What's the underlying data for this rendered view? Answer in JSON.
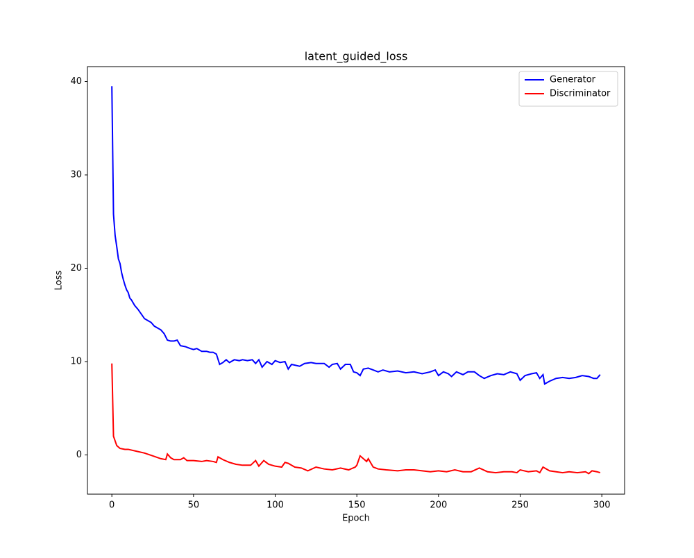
{
  "chart_data": {
    "type": "line",
    "title": "latent_guided_loss",
    "x_label": "Epoch",
    "y_label": "Loss",
    "xlim": [
      -14.95,
      313.95
    ],
    "ylim": [
      -4.2,
      41.6
    ],
    "xticks": [
      0,
      50,
      100,
      150,
      200,
      250,
      300
    ],
    "yticks": [
      0,
      10,
      20,
      30,
      40
    ],
    "legend": "upper right",
    "series": [
      {
        "name": "Generator",
        "color": "#0000ff",
        "x": [
          0,
          1,
          2,
          3,
          4,
          5,
          6,
          7,
          8,
          9,
          10,
          11,
          12,
          14,
          16,
          18,
          20,
          22,
          24,
          26,
          28,
          30,
          32,
          34,
          36,
          38,
          40,
          42,
          45,
          48,
          50,
          52,
          55,
          58,
          60,
          62,
          64,
          66,
          68,
          70,
          72,
          75,
          78,
          80,
          83,
          86,
          88,
          90,
          92,
          95,
          98,
          100,
          103,
          106,
          108,
          110,
          115,
          118,
          122,
          125,
          130,
          133,
          135,
          138,
          140,
          143,
          146,
          148,
          150,
          152,
          154,
          157,
          160,
          163,
          166,
          170,
          175,
          180,
          185,
          190,
          195,
          198,
          200,
          203,
          206,
          208,
          211,
          215,
          218,
          222,
          225,
          228,
          232,
          236,
          240,
          244,
          248,
          250,
          253,
          257,
          260,
          262,
          264,
          265,
          268,
          272,
          276,
          280,
          284,
          288,
          292,
          295,
          297,
          299
        ],
        "values": [
          39.5,
          25.8,
          23.5,
          22.3,
          21.0,
          20.5,
          19.5,
          18.8,
          18.2,
          17.7,
          17.4,
          16.8,
          16.6,
          16.0,
          15.6,
          15.1,
          14.6,
          14.4,
          14.2,
          13.8,
          13.6,
          13.4,
          13.0,
          12.3,
          12.2,
          12.2,
          12.3,
          11.7,
          11.6,
          11.4,
          11.3,
          11.4,
          11.1,
          11.1,
          11.0,
          11.0,
          10.8,
          9.7,
          9.9,
          10.2,
          9.9,
          10.2,
          10.1,
          10.2,
          10.1,
          10.2,
          9.8,
          10.2,
          9.4,
          10.0,
          9.7,
          10.1,
          9.9,
          10.0,
          9.2,
          9.7,
          9.5,
          9.8,
          9.9,
          9.8,
          9.8,
          9.4,
          9.7,
          9.8,
          9.2,
          9.7,
          9.7,
          8.9,
          8.8,
          8.5,
          9.2,
          9.3,
          9.1,
          8.9,
          9.1,
          8.9,
          9.0,
          8.8,
          8.9,
          8.7,
          8.9,
          9.1,
          8.5,
          8.9,
          8.7,
          8.4,
          8.9,
          8.6,
          8.9,
          8.9,
          8.5,
          8.2,
          8.5,
          8.7,
          8.6,
          8.9,
          8.7,
          8.0,
          8.5,
          8.7,
          8.8,
          8.2,
          8.6,
          7.6,
          7.9,
          8.2,
          8.3,
          8.2,
          8.3,
          8.5,
          8.4,
          8.2,
          8.2,
          8.6
        ]
      },
      {
        "name": "Discriminator",
        "color": "#ff0000",
        "x": [
          0,
          1,
          2,
          3,
          5,
          8,
          10,
          15,
          20,
          25,
          30,
          33,
          34,
          36,
          38,
          42,
          44,
          46,
          50,
          55,
          58,
          62,
          64,
          65,
          68,
          72,
          76,
          80,
          85,
          88,
          90,
          93,
          96,
          100,
          104,
          106,
          108,
          112,
          116,
          120,
          125,
          130,
          135,
          140,
          145,
          149,
          150,
          152,
          154,
          156,
          157,
          160,
          163,
          168,
          175,
          180,
          185,
          190,
          195,
          200,
          205,
          210,
          215,
          220,
          225,
          230,
          235,
          240,
          245,
          248,
          250,
          255,
          260,
          262,
          264,
          268,
          272,
          276,
          280,
          285,
          290,
          292,
          294,
          297,
          299
        ],
        "values": [
          9.8,
          2.0,
          1.5,
          1.0,
          0.7,
          0.6,
          0.6,
          0.4,
          0.2,
          -0.1,
          -0.4,
          -0.5,
          0.1,
          -0.3,
          -0.5,
          -0.5,
          -0.3,
          -0.6,
          -0.6,
          -0.7,
          -0.6,
          -0.7,
          -0.8,
          -0.2,
          -0.5,
          -0.8,
          -1.0,
          -1.1,
          -1.1,
          -0.6,
          -1.2,
          -0.6,
          -1.0,
          -1.2,
          -1.3,
          -0.8,
          -0.9,
          -1.3,
          -1.4,
          -1.7,
          -1.3,
          -1.5,
          -1.6,
          -1.4,
          -1.6,
          -1.3,
          -1.1,
          -0.1,
          -0.4,
          -0.7,
          -0.4,
          -1.3,
          -1.5,
          -1.6,
          -1.7,
          -1.6,
          -1.6,
          -1.7,
          -1.8,
          -1.7,
          -1.8,
          -1.6,
          -1.8,
          -1.8,
          -1.4,
          -1.8,
          -1.9,
          -1.8,
          -1.8,
          -1.9,
          -1.6,
          -1.8,
          -1.7,
          -1.9,
          -1.3,
          -1.7,
          -1.8,
          -1.9,
          -1.8,
          -1.9,
          -1.8,
          -2.0,
          -1.7,
          -1.8,
          -1.9
        ]
      }
    ]
  }
}
